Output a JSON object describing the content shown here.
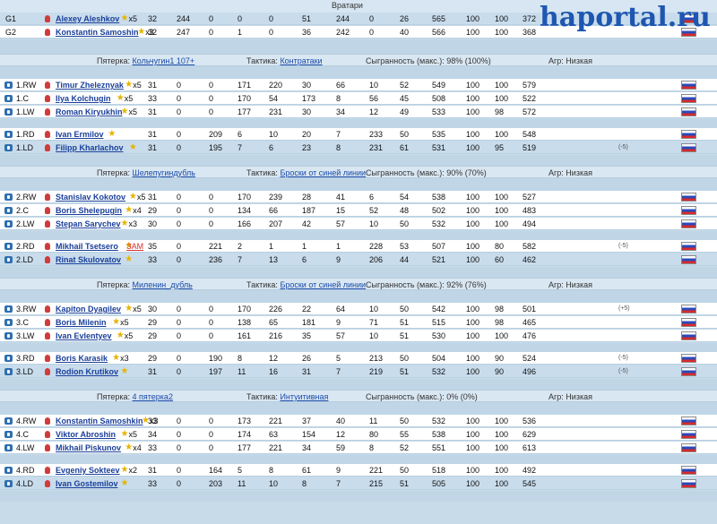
{
  "brand": "haportal.ru",
  "goalies_title": "Вратари",
  "goalies": [
    {
      "pos": "G1",
      "name": "Alexey Aleshkov",
      "stars": "x5",
      "c": [
        "32",
        "244",
        "0",
        "0",
        "0",
        "51",
        "244",
        "0",
        "26",
        "565",
        "100",
        "100",
        "372"
      ]
    },
    {
      "pos": "G2",
      "name": "Konstantin Samoshin",
      "stars": "x3",
      "c": [
        "32",
        "247",
        "0",
        "1",
        "0",
        "36",
        "242",
        "0",
        "40",
        "566",
        "100",
        "100",
        "368"
      ]
    }
  ],
  "lines": [
    {
      "label_five": "Пятерка:",
      "five": "Кольчугин1 107+",
      "label_tactic": "Тактика:",
      "tactic": "Контратаки",
      "label_played": "Сыгранность (макс.): 98% (100%)",
      "label_agr": "Агр: Низкая",
      "fwd": [
        {
          "pos": "1.RW",
          "name": "Timur Zheleznyak",
          "stars": "x5",
          "c": [
            "31",
            "0",
            "0",
            "171",
            "220",
            "30",
            "66",
            "10",
            "52",
            "549",
            "100",
            "100",
            "579"
          ]
        },
        {
          "pos": "1.C",
          "name": "Ilya Kolchugin",
          "stars": "x5",
          "c": [
            "33",
            "0",
            "0",
            "170",
            "54",
            "173",
            "8",
            "56",
            "45",
            "508",
            "100",
            "100",
            "522"
          ]
        },
        {
          "pos": "1.LW",
          "name": "Roman Kiryukhin",
          "stars": "x5",
          "c": [
            "31",
            "0",
            "0",
            "177",
            "231",
            "30",
            "34",
            "12",
            "49",
            "533",
            "100",
            "98",
            "572"
          ]
        }
      ],
      "def": [
        {
          "pos": "1.RD",
          "name": "Ivan Ermilov",
          "stars": "",
          "c": [
            "31",
            "0",
            "209",
            "6",
            "10",
            "20",
            "7",
            "233",
            "50",
            "535",
            "100",
            "100",
            "548"
          ]
        },
        {
          "pos": "1.LD",
          "name": "Filipp Kharlachov",
          "stars": "",
          "c": [
            "31",
            "0",
            "195",
            "7",
            "6",
            "23",
            "8",
            "231",
            "61",
            "531",
            "100",
            "95",
            "519"
          ],
          "delta": "(-5)"
        }
      ]
    },
    {
      "label_five": "Пятерка:",
      "five": "Шелепугиндубль",
      "label_tactic": "Тактика:",
      "tactic": "Броски от синей линии",
      "label_played": "Сыгранность (макс.): 90% (70%)",
      "label_agr": "Агр: Низкая",
      "fwd": [
        {
          "pos": "2.RW",
          "name": "Stanislav Kokotov",
          "stars": "x5",
          "c": [
            "31",
            "0",
            "0",
            "170",
            "239",
            "28",
            "41",
            "6",
            "54",
            "538",
            "100",
            "100",
            "527"
          ]
        },
        {
          "pos": "2.C",
          "name": "Boris Shelepugin",
          "stars": "x4",
          "c": [
            "29",
            "0",
            "0",
            "134",
            "66",
            "187",
            "15",
            "52",
            "48",
            "502",
            "100",
            "100",
            "483"
          ]
        },
        {
          "pos": "2.LW",
          "name": "Stepan Sarychev",
          "stars": "x3",
          "c": [
            "30",
            "0",
            "0",
            "166",
            "207",
            "42",
            "57",
            "10",
            "50",
            "532",
            "100",
            "100",
            "494"
          ]
        }
      ],
      "def": [
        {
          "pos": "2.RD",
          "name": "Mikhail Tsetsero",
          "stars": "",
          "tag": "ЗАМ",
          "c": [
            "35",
            "0",
            "221",
            "2",
            "1",
            "1",
            "1",
            "228",
            "53",
            "507",
            "100",
            "80",
            "582"
          ],
          "delta": "(-5)"
        },
        {
          "pos": "2.LD",
          "name": "Rinat Skulovatov",
          "stars": "",
          "c": [
            "33",
            "0",
            "236",
            "7",
            "13",
            "6",
            "9",
            "206",
            "44",
            "521",
            "100",
            "60",
            "462"
          ]
        }
      ]
    },
    {
      "label_five": "Пятерка:",
      "five": "Миленин_дубль",
      "label_tactic": "Тактика:",
      "tactic": "Броски от синей линии",
      "label_played": "Сыгранность (макс.): 92% (76%)",
      "label_agr": "Агр: Низкая",
      "fwd": [
        {
          "pos": "3.RW",
          "name": "Kapiton Dyagilev",
          "stars": "x5",
          "c": [
            "30",
            "0",
            "0",
            "170",
            "226",
            "22",
            "64",
            "10",
            "50",
            "542",
            "100",
            "98",
            "501"
          ],
          "delta": "(+5)"
        },
        {
          "pos": "3.C",
          "name": "Boris Milenin",
          "stars": "x5",
          "c": [
            "29",
            "0",
            "0",
            "138",
            "65",
            "181",
            "9",
            "71",
            "51",
            "515",
            "100",
            "98",
            "465"
          ]
        },
        {
          "pos": "3.LW",
          "name": "Ivan Evlentyev",
          "stars": "x5",
          "c": [
            "29",
            "0",
            "0",
            "161",
            "216",
            "35",
            "57",
            "10",
            "51",
            "530",
            "100",
            "100",
            "476"
          ]
        }
      ],
      "def": [
        {
          "pos": "3.RD",
          "name": "Boris Karasik",
          "stars": "x3",
          "c": [
            "29",
            "0",
            "190",
            "8",
            "12",
            "26",
            "5",
            "213",
            "50",
            "504",
            "100",
            "90",
            "524"
          ],
          "delta": "(-5)"
        },
        {
          "pos": "3.LD",
          "name": "Rodion Krutikov",
          "stars": "",
          "c": [
            "31",
            "0",
            "197",
            "11",
            "16",
            "31",
            "7",
            "219",
            "51",
            "532",
            "100",
            "90",
            "496"
          ],
          "delta": "(-5)"
        }
      ]
    },
    {
      "label_five": "Пятерка:",
      "five": "4 пятерка2",
      "label_tactic": "Тактика:",
      "tactic": "Интуитивная",
      "label_played": "Сыгранность (макс.): 0% (0%)",
      "label_agr": "Агр: Низкая",
      "fwd": [
        {
          "pos": "4.RW",
          "name": "Konstantin Samoshkin",
          "stars": "x3",
          "c": [
            "33",
            "0",
            "0",
            "173",
            "221",
            "37",
            "40",
            "11",
            "50",
            "532",
            "100",
            "100",
            "536"
          ]
        },
        {
          "pos": "4.C",
          "name": "Viktor Abroshin",
          "stars": "x5",
          "c": [
            "34",
            "0",
            "0",
            "174",
            "63",
            "154",
            "12",
            "80",
            "55",
            "538",
            "100",
            "100",
            "629"
          ]
        },
        {
          "pos": "4.LW",
          "name": "Mikhail Piskunov",
          "stars": "x4",
          "c": [
            "33",
            "0",
            "0",
            "177",
            "221",
            "34",
            "59",
            "8",
            "52",
            "551",
            "100",
            "100",
            "613"
          ]
        }
      ],
      "def": [
        {
          "pos": "4.RD",
          "name": "Evgeniy Sokteev",
          "stars": "x2",
          "c": [
            "31",
            "0",
            "164",
            "5",
            "8",
            "61",
            "9",
            "221",
            "50",
            "518",
            "100",
            "100",
            "492"
          ]
        },
        {
          "pos": "4.LD",
          "name": "Ivan Gostemilov",
          "stars": "",
          "c": [
            "33",
            "0",
            "203",
            "11",
            "10",
            "8",
            "7",
            "215",
            "51",
            "505",
            "100",
            "100",
            "545"
          ]
        }
      ]
    }
  ],
  "colors": {
    "link": "#1a3f99",
    "star": "#e7b400",
    "brand": "#1e56b0"
  }
}
